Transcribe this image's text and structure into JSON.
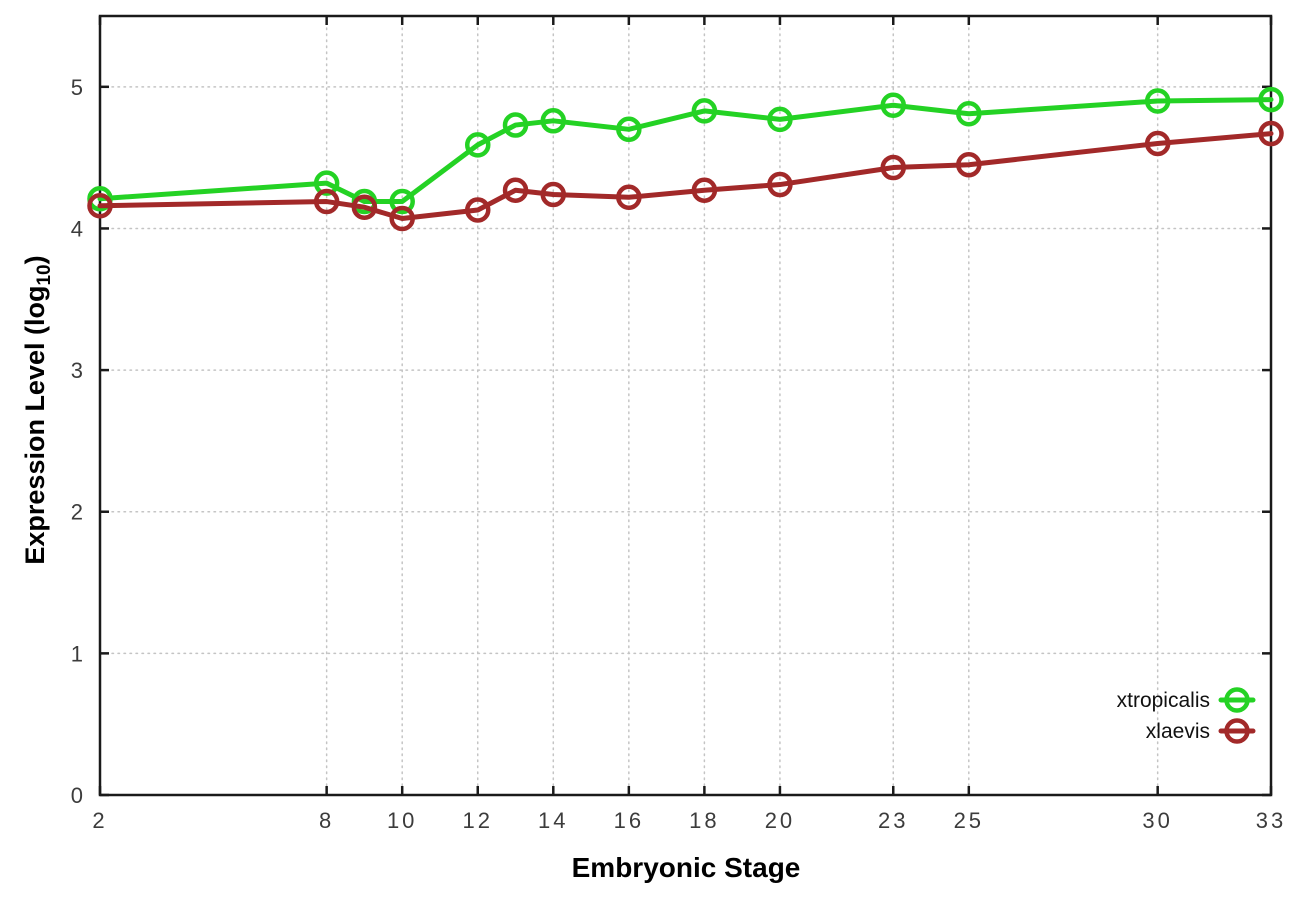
{
  "chart_data": {
    "type": "line",
    "title": "",
    "xlabel": "Embryonic Stage",
    "ylabel": {
      "main": "Expression Level (log",
      "sub": "10",
      "close": ")"
    },
    "x": [
      2,
      8,
      9,
      10,
      12,
      13,
      14,
      16,
      18,
      20,
      23,
      25,
      30,
      33
    ],
    "series": [
      {
        "name": "xtropicalis",
        "color": "#24d224",
        "marker": "open-circle",
        "values": [
          4.21,
          4.32,
          4.19,
          4.19,
          4.59,
          4.73,
          4.76,
          4.7,
          4.83,
          4.77,
          4.87,
          4.81,
          4.9,
          4.91
        ]
      },
      {
        "name": "xlaevis",
        "color": "#a22929",
        "marker": "open-circle",
        "values": [
          4.16,
          4.19,
          4.15,
          4.07,
          4.13,
          4.27,
          4.24,
          4.22,
          4.27,
          4.31,
          4.43,
          4.45,
          4.6,
          4.67
        ]
      }
    ],
    "xticks": [
      2,
      8,
      10,
      12,
      14,
      16,
      18,
      20,
      23,
      25,
      30,
      33
    ],
    "yticks": [
      0,
      1,
      2,
      3,
      4,
      5
    ],
    "xlim": [
      2,
      33
    ],
    "ylim": [
      0,
      5.5
    ],
    "grid": true,
    "gridstyle": "dotted",
    "legend": {
      "position": "inside-bottom-right",
      "entries": [
        "xtropicalis",
        "xlaevis"
      ]
    },
    "colors": {
      "background": "#ffffff",
      "border": "#1a1a1a",
      "gridline": "#c4c4c4",
      "tick_label": "#3c3c3c",
      "axis_title": "#000000"
    }
  }
}
